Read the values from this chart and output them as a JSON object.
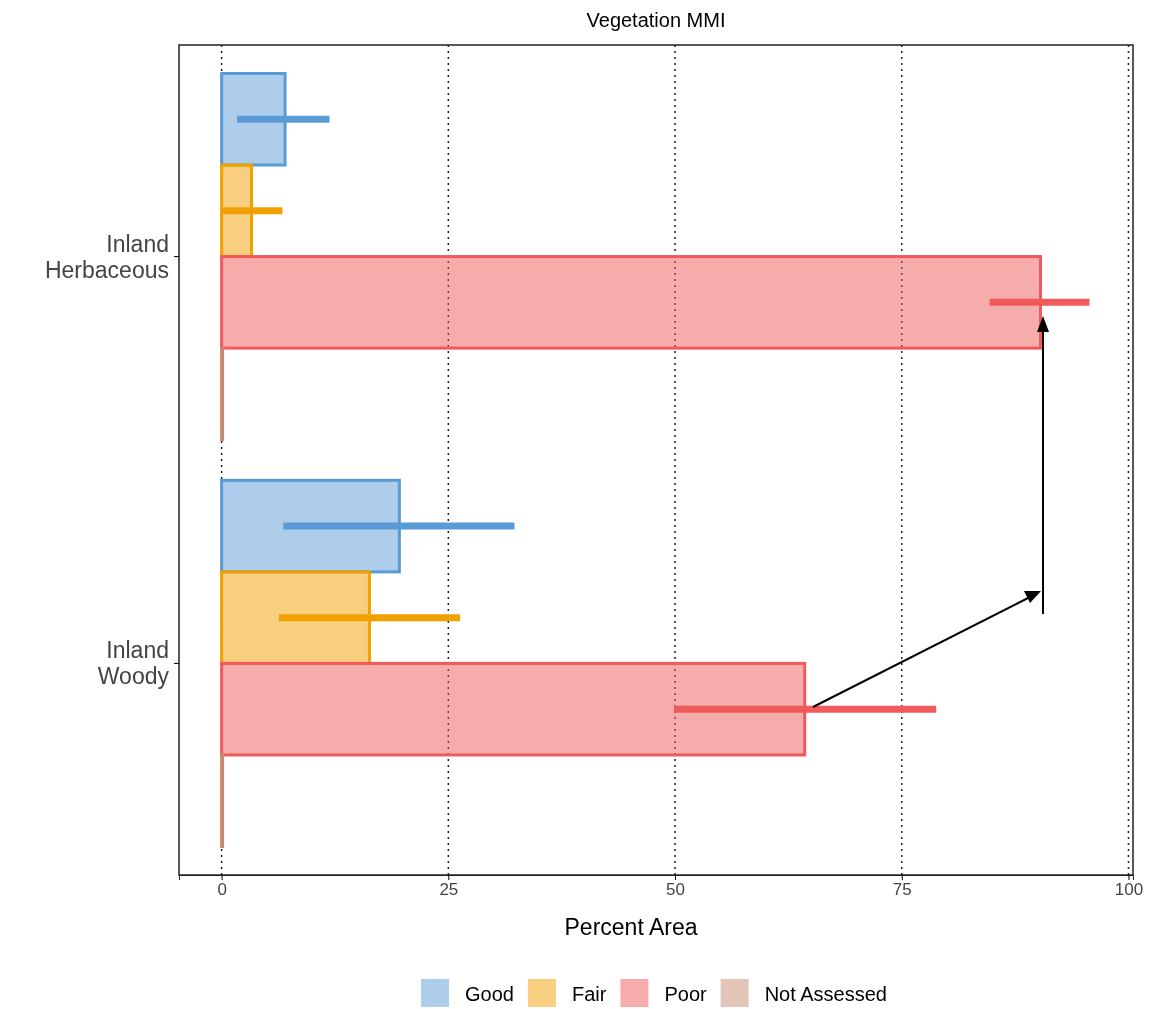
{
  "chart_data": {
    "type": "bar",
    "orientation": "horizontal",
    "title": "Vegetation MMI",
    "xlabel": "Percent Area",
    "categories": [
      "Inland Herbaceous",
      "Inland Woody"
    ],
    "series": [
      {
        "name": "Good",
        "color": "#5b9bd5",
        "values": [
          7.0,
          19.6
        ],
        "errors": [
          [
            1.7,
            11.9
          ],
          [
            6.8,
            32.3
          ]
        ]
      },
      {
        "name": "Fair",
        "color": "#f0a000",
        "values": [
          3.3,
          16.3
        ],
        "errors": [
          [
            0,
            6.7
          ],
          [
            6.3,
            26.3
          ]
        ]
      },
      {
        "name": "Poor",
        "color": "#f05a5a",
        "values": [
          90.3,
          64.3
        ],
        "errors": [
          [
            84.7,
            95.7
          ],
          [
            49.9,
            78.8
          ]
        ]
      },
      {
        "name": "Not Assessed",
        "color": "#c88a6e",
        "values": [
          0,
          0
        ]
      }
    ],
    "xlim": [
      -4.7,
      100.5
    ],
    "xticks": [
      0,
      25,
      50,
      75,
      100
    ],
    "grid": "x",
    "legend": "bottom"
  }
}
